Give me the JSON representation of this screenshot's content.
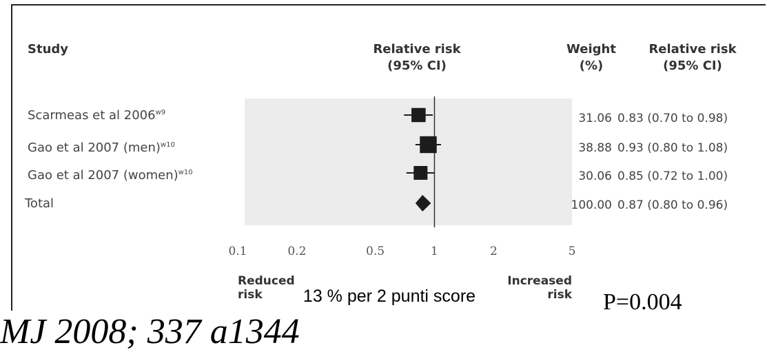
{
  "headers": {
    "study": "Study",
    "rr_col": "Relative risk\n(95% CI)",
    "weight": "Weight\n(%)",
    "rr_ci": "Relative risk\n(95% CI)"
  },
  "chart_data": {
    "type": "forest",
    "scale": "log",
    "xticks": [
      0.1,
      0.2,
      0.5,
      1,
      2,
      5
    ],
    "xtick_labels": [
      "0.1",
      "0.2",
      "0.5",
      "1",
      "2",
      "5"
    ],
    "null_line": 1,
    "rows": [
      {
        "study": "Scarmeas et al 2006",
        "sup": "w9",
        "weight": "31.06",
        "rr": 0.83,
        "lo": 0.7,
        "hi": 0.98,
        "ci_text": "0.83 (0.70 to 0.98)"
      },
      {
        "study": "Gao et al 2007 (men)",
        "sup": "w10",
        "weight": "38.88",
        "rr": 0.93,
        "lo": 0.8,
        "hi": 1.08,
        "ci_text": "0.93 (0.80 to 1.08)"
      },
      {
        "study": "Gao et al 2007 (women)",
        "sup": "w10",
        "weight": "30.06",
        "rr": 0.85,
        "lo": 0.72,
        "hi": 1.0,
        "ci_text": "0.85 (0.72 to 1.00)"
      }
    ],
    "total": {
      "study": "Total",
      "weight": "100.00",
      "rr": 0.87,
      "lo": 0.8,
      "hi": 0.96,
      "ci_text": "0.87 (0.80 to 0.96)"
    },
    "footer_left": "Reduced\nrisk",
    "footer_right": "Increased\nrisk",
    "colors": {
      "panel": "#ececec",
      "marker": "#1c1c1c",
      "axis": "#333333"
    }
  },
  "caption": "13 % per 2 punti score",
  "pvalue": "P=0.004",
  "citation": "MJ 2008; 337 a1344"
}
